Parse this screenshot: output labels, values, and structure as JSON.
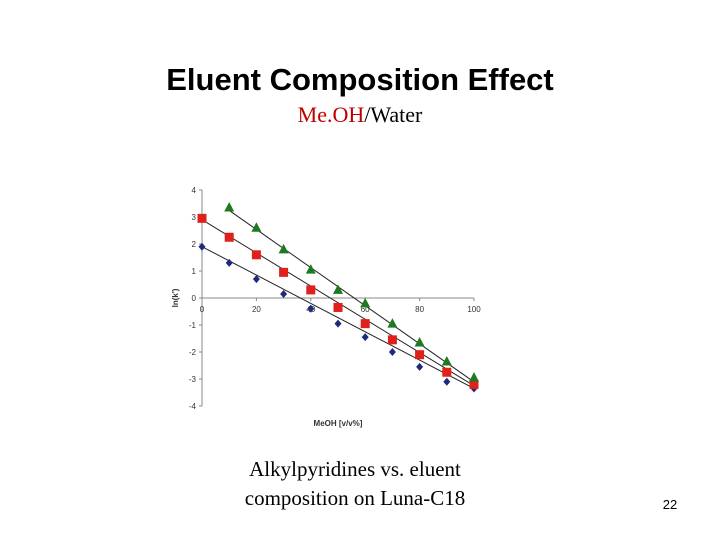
{
  "slide": {
    "title": "Eluent Composition Effect",
    "subtitle_part1": "Me.OH",
    "subtitle_part2": "/Water",
    "caption_line1": "Alkylpyridines vs. eluent",
    "caption_line2": "composition on Luna-C18",
    "slide_number": "22"
  },
  "colors": {
    "accent": "#c00000"
  },
  "chart_data": {
    "type": "scatter",
    "xlabel": "MeOH [v/v%]",
    "ylabel": "ln(k')",
    "xlim": [
      0,
      100
    ],
    "ylim": [
      -4,
      4
    ],
    "x_ticks": [
      0,
      20,
      40,
      60,
      80,
      100
    ],
    "y_ticks": [
      4,
      3,
      2,
      1,
      0,
      -1,
      -2,
      -3,
      -4
    ],
    "trendlines": true,
    "series": [
      {
        "marker": "diamond",
        "color": "#1f2a7a",
        "x": [
          0,
          10,
          20,
          30,
          40,
          50,
          60,
          70,
          80,
          90,
          100
        ],
        "y": [
          1.9,
          1.3,
          0.7,
          0.15,
          -0.4,
          -0.95,
          -1.45,
          -2.0,
          -2.55,
          -3.1,
          -3.35
        ],
        "fit": {
          "slope": -0.0525,
          "intercept": 1.9
        }
      },
      {
        "marker": "square",
        "color": "#e0201a",
        "x": [
          0,
          10,
          20,
          30,
          40,
          50,
          60,
          70,
          80,
          90,
          100
        ],
        "y": [
          2.95,
          2.25,
          1.6,
          0.95,
          0.3,
          -0.35,
          -0.95,
          -1.55,
          -2.1,
          -2.75,
          -3.2
        ],
        "fit": {
          "slope": -0.0615,
          "intercept": 2.9
        }
      },
      {
        "marker": "triangle",
        "color": "#1f7a1f",
        "x": [
          10,
          20,
          30,
          40,
          50,
          60,
          70,
          80,
          90,
          100
        ],
        "y": [
          3.35,
          2.6,
          1.8,
          1.05,
          0.3,
          -0.2,
          -0.95,
          -1.65,
          -2.35,
          -2.95
        ],
        "fit": {
          "slope": -0.0706,
          "intercept": 3.95
        }
      }
    ]
  }
}
